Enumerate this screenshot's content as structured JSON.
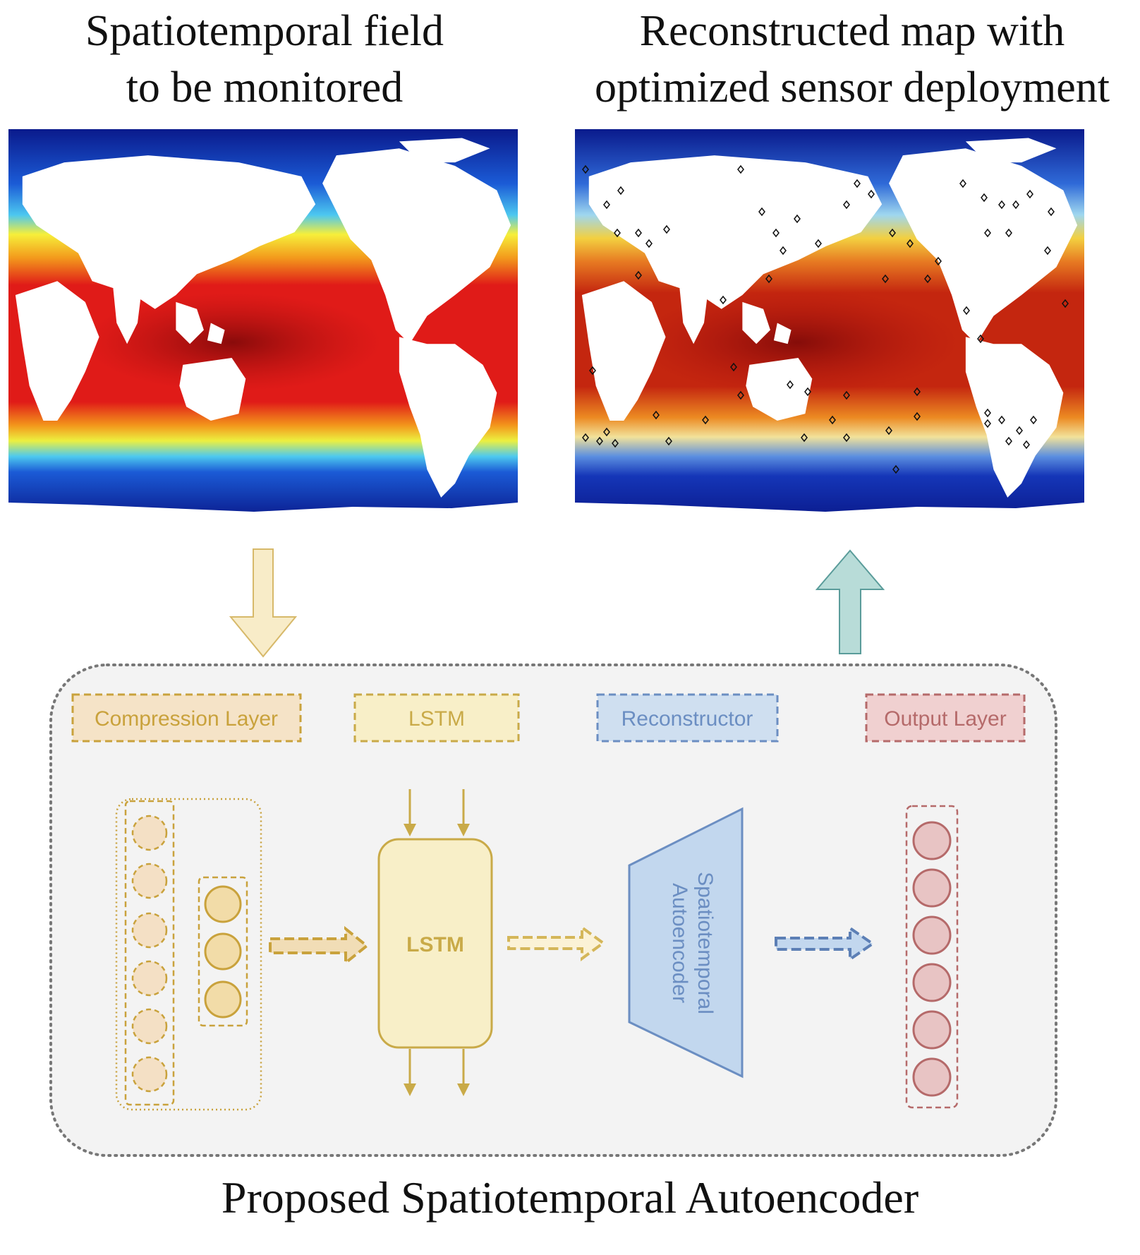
{
  "panels": {
    "left_title": "Spatiotemporal field\nto be monitored",
    "right_title": "Reconstructed map with\noptimized sensor deployment"
  },
  "diagram": {
    "labels": {
      "compression": "Compression Layer",
      "lstm": "LSTM",
      "reconstructor": "Reconstructor",
      "output": "Output Layer"
    },
    "lstm_block": "LSTM",
    "autoencoder_block": "Spatiotemporal\nAutoencoder",
    "caption": "Proposed Spatiotemporal Autoencoder"
  },
  "colors": {
    "compression": "#c9a23c",
    "lstm": "#c9aa48",
    "reconstructor": "#6b8ec2",
    "output": "#b56a6a",
    "down_arrow": "#f8ecc8",
    "up_arrow": "#b8dcd8"
  }
}
